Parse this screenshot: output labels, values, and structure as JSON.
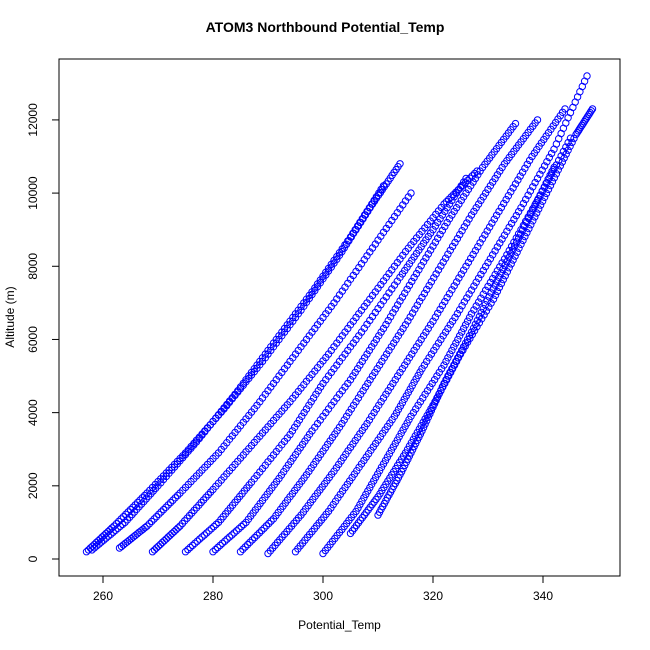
{
  "chart_data": {
    "type": "scatter",
    "title": "ATOM3 Northbound Potential_Temp",
    "xlabel": "Potential_Temp",
    "ylabel": "Altitude (m)",
    "xlim": [
      256,
      350
    ],
    "ylim": [
      0,
      13200
    ],
    "x_ticks": [
      260,
      280,
      300,
      320,
      340
    ],
    "y_ticks": [
      0,
      2000,
      4000,
      6000,
      8000,
      10000,
      12000
    ],
    "marker": "open-circle",
    "color": "#0000ff",
    "grid": false,
    "series": [
      {
        "x": [
          257,
          262,
          268,
          275,
          282,
          289,
          296,
          303,
          309,
          314
        ],
        "y": [
          200,
          900,
          1800,
          2900,
          4100,
          5400,
          6800,
          8300,
          9700,
          10800
        ]
      },
      {
        "x": [
          258,
          264,
          270,
          277,
          284,
          291,
          298,
          305,
          311
        ],
        "y": [
          250,
          1000,
          2000,
          3200,
          4500,
          5900,
          7300,
          8800,
          10200
        ]
      },
      {
        "x": [
          263,
          268,
          274,
          281,
          288,
          295,
          302,
          309,
          316
        ],
        "y": [
          300,
          900,
          1800,
          2900,
          4200,
          5600,
          7000,
          8500,
          10000
        ]
      },
      {
        "x": [
          269,
          274,
          280,
          287,
          294,
          301,
          308,
          315,
          322,
          328
        ],
        "y": [
          200,
          900,
          1900,
          3100,
          4300,
          5600,
          7000,
          8400,
          9700,
          10600
        ]
      },
      {
        "x": [
          275,
          281,
          287,
          294,
          300,
          307,
          314,
          320,
          326
        ],
        "y": [
          200,
          1000,
          2100,
          3400,
          4800,
          6200,
          7700,
          9000,
          10400
        ]
      },
      {
        "x": [
          280,
          286,
          292,
          298,
          305,
          311,
          317,
          323,
          329,
          335
        ],
        "y": [
          200,
          1000,
          2200,
          3500,
          4900,
          6300,
          7800,
          9300,
          10700,
          11900
        ]
      },
      {
        "x": [
          285,
          291,
          297,
          303,
          309,
          315,
          321,
          327,
          333,
          339
        ],
        "y": [
          200,
          1100,
          2300,
          3600,
          5000,
          6400,
          7900,
          9400,
          10800,
          12000
        ]
      },
      {
        "x": [
          290,
          296,
          302,
          308,
          314,
          320,
          326,
          332,
          338,
          344
        ],
        "y": [
          150,
          1200,
          2400,
          3700,
          5100,
          6500,
          8000,
          9500,
          11000,
          12300
        ]
      },
      {
        "x": [
          295,
          301,
          307,
          313,
          318,
          324,
          330,
          336,
          342,
          348
        ],
        "y": [
          200,
          1300,
          2600,
          3900,
          5200,
          6600,
          8100,
          9600,
          11200,
          13200
        ]
      },
      {
        "x": [
          300,
          306,
          311,
          316,
          322,
          327,
          333,
          339,
          345
        ],
        "y": [
          150,
          1300,
          2600,
          3900,
          5300,
          6700,
          8200,
          9800,
          11500
        ]
      },
      {
        "x": [
          305,
          310,
          315,
          320,
          325,
          331,
          336,
          341,
          346,
          349
        ],
        "y": [
          700,
          1700,
          2900,
          4200,
          5600,
          7100,
          8600,
          10100,
          11600,
          12300
        ]
      },
      {
        "x": [
          310,
          314,
          318,
          322,
          327,
          332,
          337,
          342
        ],
        "y": [
          1200,
          2300,
          3500,
          4800,
          6200,
          7700,
          9200,
          10700
        ]
      }
    ]
  }
}
